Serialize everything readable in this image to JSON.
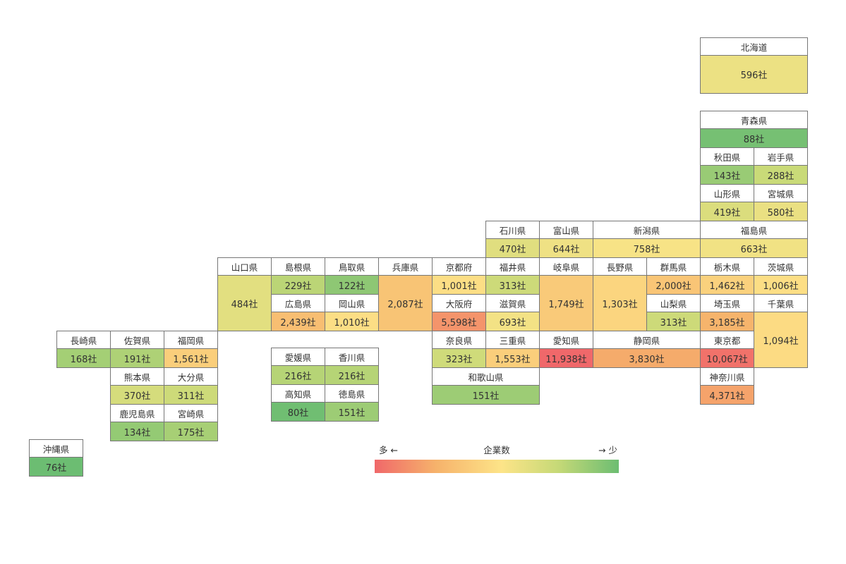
{
  "chart_data": {
    "type": "heatmap",
    "unit": "社",
    "legend": {
      "left": "多 ←",
      "title": "企業数",
      "right": "→ 少"
    },
    "color_scale": {
      "high": "#f0686a",
      "mid_high": "#f6b26b",
      "mid": "#fde488",
      "mid_low": "#c6d977",
      "low": "#6cbd72"
    },
    "prefectures": [
      {
        "id": "hokkaido",
        "name": "北海道",
        "value": 596
      },
      {
        "id": "aomori",
        "name": "青森県",
        "value": 88
      },
      {
        "id": "akita",
        "name": "秋田県",
        "value": 143
      },
      {
        "id": "iwate",
        "name": "岩手県",
        "value": 288
      },
      {
        "id": "yamagata",
        "name": "山形県",
        "value": 419
      },
      {
        "id": "miyagi",
        "name": "宮城県",
        "value": 580
      },
      {
        "id": "ishikawa",
        "name": "石川県",
        "value": 470
      },
      {
        "id": "toyama",
        "name": "富山県",
        "value": 644
      },
      {
        "id": "niigata",
        "name": "新潟県",
        "value": 758
      },
      {
        "id": "fukushima",
        "name": "福島県",
        "value": 663
      },
      {
        "id": "yamaguchi",
        "name": "山口県",
        "value": 484
      },
      {
        "id": "shimane",
        "name": "島根県",
        "value": 229
      },
      {
        "id": "tottori",
        "name": "鳥取県",
        "value": 122
      },
      {
        "id": "hyogo",
        "name": "兵庫県",
        "value": 2087
      },
      {
        "id": "kyoto",
        "name": "京都府",
        "value": 1001
      },
      {
        "id": "fukui",
        "name": "福井県",
        "value": 313
      },
      {
        "id": "gifu",
        "name": "岐阜県",
        "value": 1749
      },
      {
        "id": "nagano",
        "name": "長野県",
        "value": 1303
      },
      {
        "id": "gunma",
        "name": "群馬県",
        "value": 2000
      },
      {
        "id": "tochigi",
        "name": "栃木県",
        "value": 1462
      },
      {
        "id": "ibaraki",
        "name": "茨城県",
        "value": 1006
      },
      {
        "id": "hiroshima",
        "name": "広島県",
        "value": 2439
      },
      {
        "id": "okayama",
        "name": "岡山県",
        "value": 1010
      },
      {
        "id": "osaka",
        "name": "大阪府",
        "value": 5598
      },
      {
        "id": "shiga",
        "name": "滋賀県",
        "value": 693
      },
      {
        "id": "yamanashi",
        "name": "山梨県",
        "value": 313
      },
      {
        "id": "saitama",
        "name": "埼玉県",
        "value": 3185
      },
      {
        "id": "chiba",
        "name": "千葉県",
        "value": 1094
      },
      {
        "id": "nagasaki",
        "name": "長崎県",
        "value": 168
      },
      {
        "id": "saga",
        "name": "佐賀県",
        "value": 191
      },
      {
        "id": "fukuoka",
        "name": "福岡県",
        "value": 1561
      },
      {
        "id": "nara",
        "name": "奈良県",
        "value": 323
      },
      {
        "id": "mie",
        "name": "三重県",
        "value": 1553
      },
      {
        "id": "aichi",
        "name": "愛知県",
        "value": 11938
      },
      {
        "id": "shizuoka",
        "name": "静岡県",
        "value": 3830
      },
      {
        "id": "tokyo",
        "name": "東京都",
        "value": 10067
      },
      {
        "id": "ehime",
        "name": "愛媛県",
        "value": 216
      },
      {
        "id": "kagawa",
        "name": "香川県",
        "value": 216
      },
      {
        "id": "kumamoto",
        "name": "熊本県",
        "value": 370
      },
      {
        "id": "oita",
        "name": "大分県",
        "value": 311
      },
      {
        "id": "wakayama",
        "name": "和歌山県",
        "value": 151
      },
      {
        "id": "kanagawa",
        "name": "神奈川県",
        "value": 4371
      },
      {
        "id": "kochi",
        "name": "高知県",
        "value": 80
      },
      {
        "id": "tokushima",
        "name": "徳島県",
        "value": 151
      },
      {
        "id": "kagoshima",
        "name": "鹿児島県",
        "value": 134
      },
      {
        "id": "miyazaki",
        "name": "宮崎県",
        "value": 175
      },
      {
        "id": "okinawa",
        "name": "沖縄県",
        "value": 76
      }
    ]
  }
}
